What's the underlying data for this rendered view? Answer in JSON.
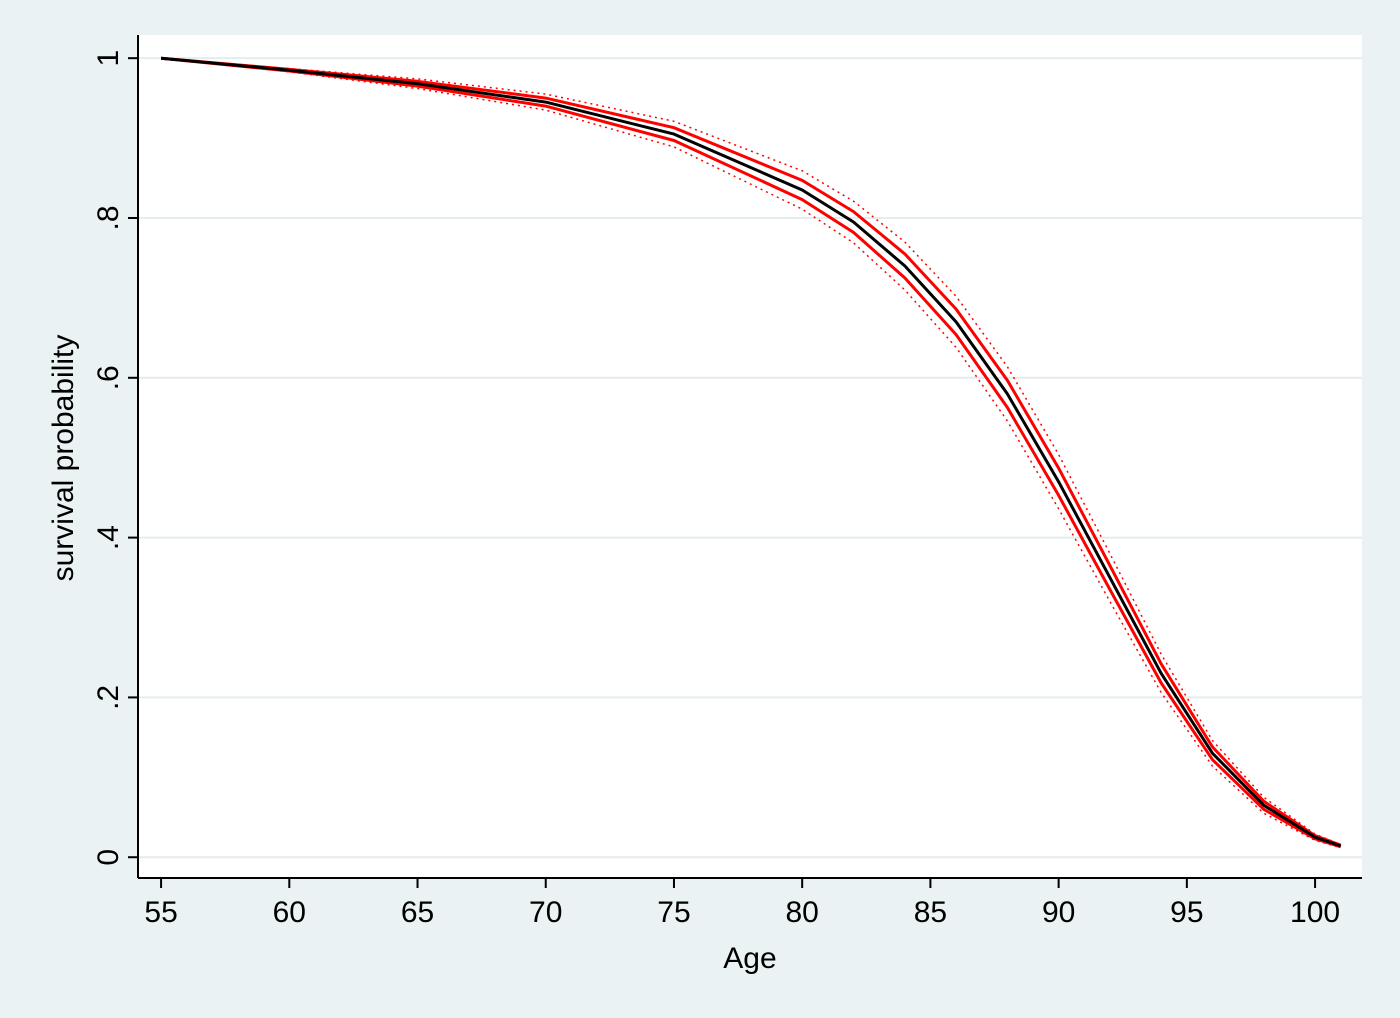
{
  "chart_data": {
    "type": "line",
    "xlabel": "Age",
    "ylabel": "survival probability",
    "x": [
      55,
      60,
      65,
      70,
      75,
      80,
      82,
      84,
      86,
      88,
      90,
      92,
      94,
      96,
      98,
      100,
      101
    ],
    "series": [
      {
        "color": "#ff0000",
        "dash": "dotted",
        "width": 1.5,
        "values": [
          1.0,
          0.987,
          0.974,
          0.955,
          0.921,
          0.859,
          0.821,
          0.77,
          0.702,
          0.614,
          0.504,
          0.38,
          0.254,
          0.146,
          0.075,
          0.029,
          0.016
        ]
      },
      {
        "color": "#ff0000",
        "dash": "dotted",
        "width": 1.5,
        "values": [
          1.0,
          0.983,
          0.962,
          0.935,
          0.889,
          0.811,
          0.769,
          0.71,
          0.638,
          0.546,
          0.436,
          0.32,
          0.206,
          0.114,
          0.055,
          0.021,
          0.012
        ]
      },
      {
        "color": "#ff0000",
        "dash": "solid",
        "width": 3,
        "values": [
          1.0,
          0.986,
          0.971,
          0.95,
          0.913,
          0.847,
          0.808,
          0.755,
          0.686,
          0.597,
          0.487,
          0.365,
          0.242,
          0.138,
          0.07,
          0.027,
          0.015
        ]
      },
      {
        "color": "#ff0000",
        "dash": "solid",
        "width": 3,
        "values": [
          1.0,
          0.984,
          0.965,
          0.94,
          0.897,
          0.823,
          0.782,
          0.725,
          0.654,
          0.563,
          0.453,
          0.335,
          0.218,
          0.122,
          0.06,
          0.023,
          0.013
        ]
      },
      {
        "color": "#000000",
        "dash": "solid",
        "width": 3,
        "values": [
          1.0,
          0.985,
          0.968,
          0.945,
          0.905,
          0.835,
          0.795,
          0.74,
          0.67,
          0.58,
          0.47,
          0.35,
          0.23,
          0.13,
          0.065,
          0.025,
          0.014
        ]
      }
    ],
    "xlim": [
      54.1,
      101.83
    ],
    "xticks": [
      55,
      60,
      65,
      70,
      75,
      80,
      85,
      90,
      95,
      100
    ],
    "ylim": [
      -0.026,
      1.029
    ],
    "yticks": [
      0,
      {
        "value": 0.2,
        "label": ".2"
      },
      {
        "value": 0.4,
        "label": ".4"
      },
      {
        "value": 0.6,
        "label": ".6"
      },
      {
        "value": 0.8,
        "label": ".8"
      },
      1
    ],
    "grid": true
  }
}
